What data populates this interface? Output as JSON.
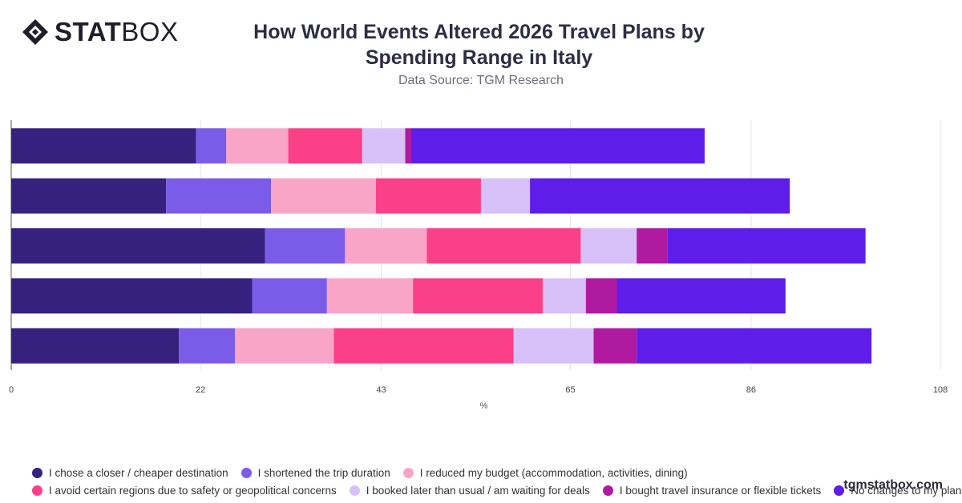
{
  "logo": {
    "part1": "STAT",
    "part2": "BOX",
    "icon": "diamond-logo-icon"
  },
  "title_line1": "How World Events Altered 2026 Travel Plans by",
  "title_line2": "Spending Range in Italy",
  "subtitle": "Data Source: TGM Research",
  "watermark": "tgmstatbox.com",
  "chart_data": {
    "type": "bar",
    "orientation": "horizontal",
    "stacked": true,
    "xlabel": "%",
    "xlim": [
      0,
      108
    ],
    "xticks": [
      0,
      22,
      43,
      65,
      86,
      108
    ],
    "grid": true,
    "legend_position": "bottom",
    "categories": [
      "",
      "",
      "",
      "",
      ""
    ],
    "series": [
      {
        "name": "I chose a closer / cheaper destination",
        "color": "#36217f",
        "values": [
          21.5,
          18.0,
          29.5,
          28.0,
          19.5
        ]
      },
      {
        "name": "I shortened the trip duration",
        "color": "#7b5ce8",
        "values": [
          3.5,
          12.2,
          9.3,
          8.7,
          6.5
        ]
      },
      {
        "name": "I reduced my budget (accommodation, activities, dining)",
        "color": "#f8a5c8",
        "values": [
          7.2,
          12.2,
          9.5,
          10.0,
          11.5
        ]
      },
      {
        "name": "I avoid certain regions due to safety or geopolitical concerns",
        "color": "#fa4088",
        "values": [
          8.6,
          12.2,
          17.9,
          15.1,
          20.9
        ]
      },
      {
        "name": "I booked later than usual / am waiting for deals",
        "color": "#d8c0f8",
        "values": [
          5.0,
          5.7,
          6.5,
          5.0,
          9.3
        ]
      },
      {
        "name": "I bought travel insurance or flexible tickets",
        "color": "#b01aa0",
        "values": [
          0.7,
          0.0,
          3.6,
          3.6,
          5.0
        ]
      },
      {
        "name": "No changes to my plans",
        "color": "#5e1de8",
        "values": [
          34.1,
          30.2,
          23.0,
          19.6,
          27.3
        ]
      }
    ]
  }
}
